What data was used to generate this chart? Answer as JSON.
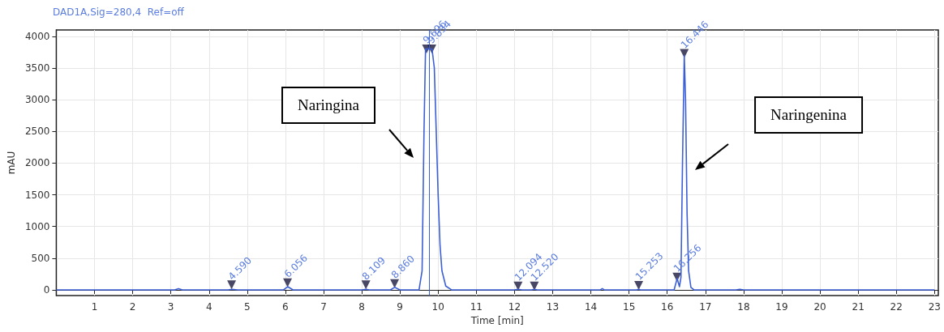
{
  "chart_data": {
    "type": "line",
    "title": "DAD1A,Sig=280,4  Ref=off",
    "xlabel": "Time [min]",
    "ylabel": "mAU",
    "xlim": [
      0,
      23.1
    ],
    "xticks": [
      1,
      2,
      3,
      4,
      5,
      6,
      7,
      8,
      9,
      10,
      11,
      12,
      13,
      14,
      15,
      16,
      17,
      18,
      19,
      20,
      21,
      22,
      23
    ],
    "ylim": [
      -90,
      4100
    ],
    "yticks": [
      0,
      500,
      1000,
      1500,
      2000,
      2500,
      3000,
      3500,
      4000
    ],
    "grid": true,
    "series": [
      {
        "color": "#3d5fd6",
        "marker": "none",
        "x": [
          0,
          3.1,
          3.2,
          3.3,
          4.5,
          4.6,
          4.75,
          5.95,
          6.06,
          6.2,
          8.0,
          8.11,
          8.2,
          8.75,
          8.86,
          9.0,
          9.5,
          9.58,
          9.63,
          9.67,
          9.7,
          9.75,
          9.77,
          9.8,
          9.84,
          9.9,
          9.95,
          10.0,
          10.05,
          10.1,
          10.2,
          10.35,
          12.0,
          12.09,
          12.2,
          12.45,
          12.52,
          12.6,
          14.25,
          14.3,
          14.35,
          15.2,
          15.25,
          15.3,
          16.18,
          16.26,
          16.32,
          16.36,
          16.4,
          16.446,
          16.48,
          16.52,
          16.56,
          16.62,
          16.7,
          17.8,
          17.9,
          18.0,
          23
        ],
        "values": [
          0,
          0,
          20,
          0,
          0,
          10,
          0,
          0,
          50,
          0,
          0,
          10,
          0,
          0,
          40,
          0,
          0,
          300,
          2500,
          3800,
          3800,
          3800,
          3800,
          3800,
          3800,
          3500,
          2500,
          1500,
          700,
          300,
          60,
          0,
          0,
          10,
          0,
          0,
          10,
          0,
          0,
          20,
          0,
          0,
          10,
          0,
          0,
          180,
          50,
          200,
          2000,
          3700,
          3000,
          1200,
          300,
          40,
          0,
          0,
          10,
          0,
          0
        ]
      },
      {
        "type": "scatter",
        "color": "#1a1a40",
        "marker": "triangle",
        "x": [
          4.59,
          6.056,
          8.109,
          8.86,
          9.696,
          9.834,
          12.094,
          12.52,
          15.253,
          16.256,
          16.446
        ],
        "values": [
          80,
          110,
          80,
          100,
          3800,
          3800,
          60,
          60,
          70,
          200,
          3730
        ]
      }
    ],
    "ref_lines": [
      {
        "axis": "x",
        "value": 9.77,
        "color": "#3d5fd6"
      }
    ],
    "annotations": [
      {
        "text": "4.590",
        "x": 4.59,
        "y": 80
      },
      {
        "text": "6.056",
        "x": 6.056,
        "y": 110
      },
      {
        "text": "8.109",
        "x": 8.109,
        "y": 80
      },
      {
        "text": "8.860",
        "x": 8.86,
        "y": 100
      },
      {
        "text": "9.696",
        "x": 9.696,
        "y": 3800
      },
      {
        "text": "9.834",
        "x": 9.834,
        "y": 3800
      },
      {
        "text": "12.094",
        "x": 12.094,
        "y": 60
      },
      {
        "text": "12.520",
        "x": 12.52,
        "y": 60
      },
      {
        "text": "15.253",
        "x": 15.253,
        "y": 70
      },
      {
        "text": "16.256",
        "x": 16.256,
        "y": 200
      },
      {
        "text": "16.446",
        "x": 16.446,
        "y": 3730
      },
      "Naringina",
      "Naringenina"
    ]
  }
}
